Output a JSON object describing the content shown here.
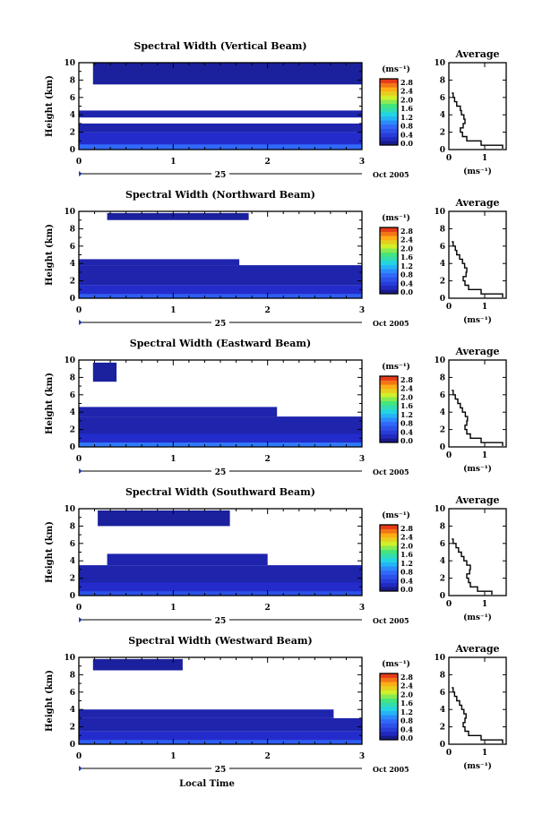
{
  "chart_data": [
    {
      "type": "heatmap",
      "title": "Spectral Width (Vertical Beam)",
      "ylabel": "Height (km)",
      "xlim": [
        0,
        3
      ],
      "ylim": [
        0,
        10
      ],
      "x_ticks": [
        "0",
        "1",
        "2",
        "3"
      ],
      "y_ticks": [
        "0",
        "2",
        "4",
        "6",
        "8",
        "10"
      ],
      "date_label": "25",
      "month_label": "Oct 2005",
      "colorbar": {
        "unit": "(ms⁻¹)",
        "range": [
          0,
          2.8
        ],
        "ticks": [
          "2.8",
          "2.4",
          "2.0",
          "1.6",
          "1.2",
          "0.8",
          "0.4",
          "0.0"
        ]
      },
      "layers": [
        {
          "y0": 0.0,
          "y1": 2.0,
          "v": 0.3,
          "x": [
            [
              0,
              3
            ]
          ]
        },
        {
          "y0": 0.0,
          "y1": 0.6,
          "v": 0.8,
          "x": [
            [
              0,
              3
            ]
          ]
        },
        {
          "y0": 2.0,
          "y1": 3.0,
          "v": 0.2,
          "x": [
            [
              0,
              3
            ]
          ]
        },
        {
          "y0": 3.7,
          "y1": 4.5,
          "v": 0.2,
          "x": [
            [
              0,
              3
            ]
          ]
        },
        {
          "y0": 7.5,
          "y1": 10.0,
          "v": 0.15,
          "x": [
            [
              0.15,
              3
            ]
          ]
        }
      ],
      "profile": {
        "title": "Average",
        "xlabel": "(ms⁻¹)",
        "xlim": [
          0,
          1.6
        ],
        "x_ticks": [
          "0",
          "1"
        ],
        "height": [
          0.1,
          0.5,
          1.0,
          1.5,
          2.0,
          2.5,
          3.0,
          3.5,
          4.0,
          4.5,
          5.0,
          5.5,
          6.0,
          6.5
        ],
        "width": [
          1.5,
          0.9,
          0.5,
          0.38,
          0.32,
          0.4,
          0.45,
          0.42,
          0.35,
          0.32,
          0.22,
          0.16,
          0.12,
          0.08
        ]
      }
    },
    {
      "type": "heatmap",
      "title": "Spectral Width (Northward Beam)",
      "ylabel": "Height (km)",
      "xlim": [
        0,
        3
      ],
      "ylim": [
        0,
        10
      ],
      "x_ticks": [
        "0",
        "1",
        "2",
        "3"
      ],
      "y_ticks": [
        "0",
        "2",
        "4",
        "6",
        "8",
        "10"
      ],
      "date_label": "25",
      "month_label": "Oct 2005",
      "colorbar": {
        "unit": "(ms⁻¹)",
        "range": [
          0,
          2.8
        ],
        "ticks": [
          "2.8",
          "2.4",
          "2.0",
          "1.6",
          "1.2",
          "0.8",
          "0.4",
          "0.0"
        ]
      },
      "layers": [
        {
          "y0": 0.0,
          "y1": 1.5,
          "v": 0.3,
          "x": [
            [
              0,
              3
            ]
          ]
        },
        {
          "y0": 0.0,
          "y1": 0.5,
          "v": 0.7,
          "x": [
            [
              0,
              3
            ]
          ]
        },
        {
          "y0": 1.5,
          "y1": 3.8,
          "v": 0.2,
          "x": [
            [
              0,
              3
            ]
          ]
        },
        {
          "y0": 3.8,
          "y1": 4.5,
          "v": 0.2,
          "x": [
            [
              0,
              1.7
            ]
          ]
        },
        {
          "y0": 9.0,
          "y1": 9.8,
          "v": 0.15,
          "x": [
            [
              0.3,
              1.8
            ]
          ]
        }
      ],
      "profile": {
        "title": "Average",
        "xlabel": "(ms⁻¹)",
        "xlim": [
          0,
          1.6
        ],
        "x_ticks": [
          "0",
          "1"
        ],
        "height": [
          0.1,
          0.5,
          1.0,
          1.5,
          2.0,
          2.5,
          3.0,
          3.5,
          4.0,
          4.5,
          5.0,
          5.5,
          6.0,
          6.5
        ],
        "width": [
          1.5,
          0.9,
          0.55,
          0.45,
          0.4,
          0.48,
          0.5,
          0.44,
          0.38,
          0.3,
          0.22,
          0.18,
          0.12,
          0.08
        ]
      }
    },
    {
      "type": "heatmap",
      "title": "Spectral Width (Eastward Beam)",
      "ylabel": "Height (km)",
      "xlim": [
        0,
        3
      ],
      "ylim": [
        0,
        10
      ],
      "x_ticks": [
        "0",
        "1",
        "2",
        "3"
      ],
      "y_ticks": [
        "0",
        "2",
        "4",
        "6",
        "8",
        "10"
      ],
      "date_label": "25",
      "month_label": "Oct 2005",
      "colorbar": {
        "unit": "(ms⁻¹)",
        "range": [
          0,
          2.8
        ],
        "ticks": [
          "2.8",
          "2.4",
          "2.0",
          "1.6",
          "1.2",
          "0.8",
          "0.4",
          "0.0"
        ]
      },
      "layers": [
        {
          "y0": 0.0,
          "y1": 1.5,
          "v": 0.3,
          "x": [
            [
              0,
              3
            ]
          ]
        },
        {
          "y0": 0.0,
          "y1": 0.5,
          "v": 0.9,
          "x": [
            [
              0,
              3
            ]
          ]
        },
        {
          "y0": 1.5,
          "y1": 3.5,
          "v": 0.2,
          "x": [
            [
              0,
              3
            ]
          ]
        },
        {
          "y0": 3.5,
          "y1": 4.6,
          "v": 0.2,
          "x": [
            [
              0,
              2.1
            ]
          ]
        },
        {
          "y0": 7.5,
          "y1": 9.7,
          "v": 0.15,
          "x": [
            [
              0.15,
              0.4
            ]
          ]
        }
      ],
      "profile": {
        "title": "Average",
        "xlabel": "(ms⁻¹)",
        "xlim": [
          0,
          1.6
        ],
        "x_ticks": [
          "0",
          "1"
        ],
        "height": [
          0.1,
          0.5,
          1.0,
          1.5,
          2.0,
          2.5,
          3.0,
          3.5,
          4.0,
          4.5,
          5.0,
          5.5,
          6.0,
          6.5
        ],
        "width": [
          1.5,
          0.9,
          0.6,
          0.5,
          0.45,
          0.5,
          0.52,
          0.46,
          0.38,
          0.32,
          0.25,
          0.18,
          0.12,
          0.08
        ]
      }
    },
    {
      "type": "heatmap",
      "title": "Spectral Width (Southward Beam)",
      "ylabel": "Height (km)",
      "xlim": [
        0,
        3
      ],
      "ylim": [
        0,
        10
      ],
      "x_ticks": [
        "0",
        "1",
        "2",
        "3"
      ],
      "y_ticks": [
        "0",
        "2",
        "4",
        "6",
        "8",
        "10"
      ],
      "date_label": "25",
      "month_label": "Oct 2005",
      "colorbar": {
        "unit": "(ms⁻¹)",
        "range": [
          0,
          2.8
        ],
        "ticks": [
          "2.8",
          "2.4",
          "2.0",
          "1.6",
          "1.2",
          "0.8",
          "0.4",
          "0.0"
        ]
      },
      "layers": [
        {
          "y0": 0.0,
          "y1": 1.5,
          "v": 0.3,
          "x": [
            [
              0,
              3
            ]
          ]
        },
        {
          "y0": 0.0,
          "y1": 0.5,
          "v": 0.6,
          "x": [
            [
              0,
              3
            ]
          ]
        },
        {
          "y0": 1.5,
          "y1": 3.5,
          "v": 0.2,
          "x": [
            [
              0,
              3
            ]
          ]
        },
        {
          "y0": 3.5,
          "y1": 4.8,
          "v": 0.2,
          "x": [
            [
              0.3,
              2.0
            ]
          ]
        },
        {
          "y0": 8.0,
          "y1": 9.8,
          "v": 0.15,
          "x": [
            [
              0.2,
              1.6
            ]
          ]
        }
      ],
      "profile": {
        "title": "Average",
        "xlabel": "(ms⁻¹)",
        "xlim": [
          0,
          1.6
        ],
        "x_ticks": [
          "0",
          "1"
        ],
        "height": [
          0.1,
          0.5,
          1.0,
          1.5,
          2.0,
          2.5,
          3.0,
          3.5,
          4.0,
          4.5,
          5.0,
          5.5,
          6.0,
          6.5
        ],
        "width": [
          1.2,
          0.8,
          0.6,
          0.55,
          0.5,
          0.58,
          0.6,
          0.5,
          0.42,
          0.35,
          0.27,
          0.2,
          0.12,
          0.08
        ]
      }
    },
    {
      "type": "heatmap",
      "title": "Spectral Width (Westward Beam)",
      "ylabel": "Height (km)",
      "xlim": [
        0,
        3
      ],
      "ylim": [
        0,
        10
      ],
      "x_ticks": [
        "0",
        "1",
        "2",
        "3"
      ],
      "y_ticks": [
        "0",
        "2",
        "4",
        "6",
        "8",
        "10"
      ],
      "date_label": "25",
      "month_label": "Oct 2005",
      "xlabel": "Local Time",
      "colorbar": {
        "unit": "(ms⁻¹)",
        "range": [
          0,
          2.8
        ],
        "ticks": [
          "2.8",
          "2.4",
          "2.0",
          "1.6",
          "1.2",
          "0.8",
          "0.4",
          "0.0"
        ]
      },
      "layers": [
        {
          "y0": 0.0,
          "y1": 1.5,
          "v": 0.3,
          "x": [
            [
              0,
              3
            ]
          ]
        },
        {
          "y0": 0.0,
          "y1": 0.5,
          "v": 0.7,
          "x": [
            [
              0,
              3
            ]
          ]
        },
        {
          "y0": 1.5,
          "y1": 3.0,
          "v": 0.2,
          "x": [
            [
              0,
              3
            ]
          ]
        },
        {
          "y0": 3.0,
          "y1": 4.0,
          "v": 0.2,
          "x": [
            [
              0,
              2.7
            ]
          ]
        },
        {
          "y0": 8.5,
          "y1": 9.8,
          "v": 0.15,
          "x": [
            [
              0.15,
              1.1
            ]
          ]
        }
      ],
      "profile": {
        "title": "Average",
        "xlabel": "(ms⁻¹)",
        "xlim": [
          0,
          1.6
        ],
        "x_ticks": [
          "0",
          "1"
        ],
        "height": [
          0.1,
          0.5,
          1.0,
          1.5,
          2.0,
          2.5,
          3.0,
          3.5,
          4.0,
          4.5,
          5.0,
          5.5,
          6.0,
          6.5
        ],
        "width": [
          1.5,
          0.9,
          0.55,
          0.45,
          0.4,
          0.45,
          0.48,
          0.42,
          0.36,
          0.3,
          0.22,
          0.16,
          0.12,
          0.08
        ]
      }
    }
  ]
}
